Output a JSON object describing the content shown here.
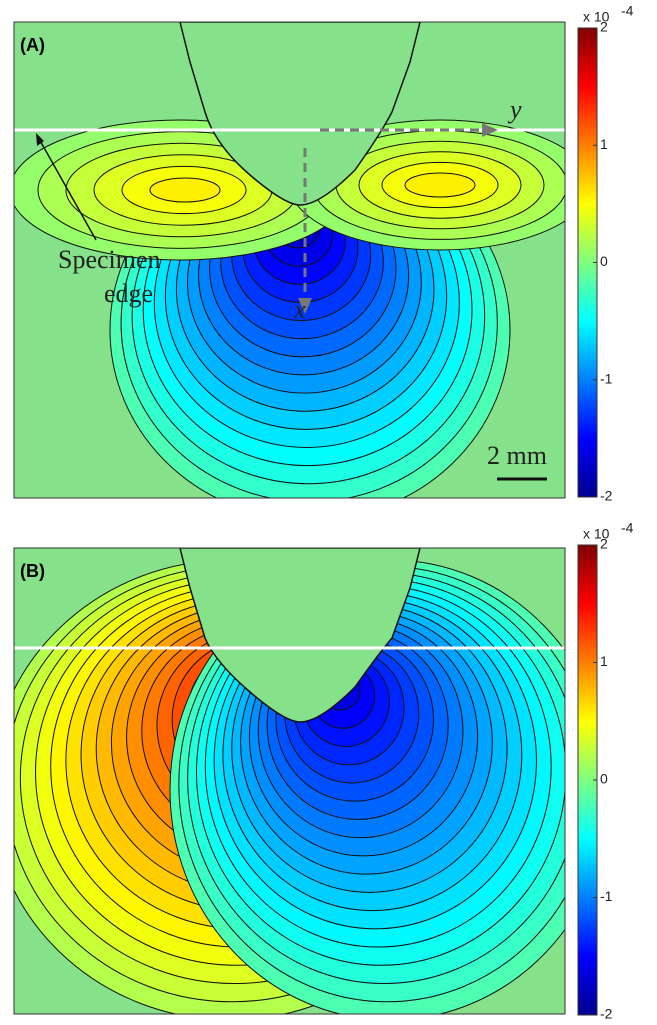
{
  "panels": [
    {
      "label": "(A)",
      "colorbar": {
        "clim": [
          -2,
          2
        ],
        "ticks": [
          2,
          1,
          0,
          -1,
          -2
        ],
        "multiplier": "x 10",
        "exponent": -4
      },
      "annotations": {
        "y_axis": "y",
        "x_axis": "x",
        "edge_line1": "Specimen",
        "edge_line2": "edge",
        "scale_bar": "2 mm"
      }
    },
    {
      "label": "(B)",
      "colorbar": {
        "clim": [
          -2,
          2
        ],
        "ticks": [
          2,
          1,
          0,
          -1,
          -2
        ],
        "multiplier": "x 10",
        "exponent": -4
      }
    }
  ]
}
